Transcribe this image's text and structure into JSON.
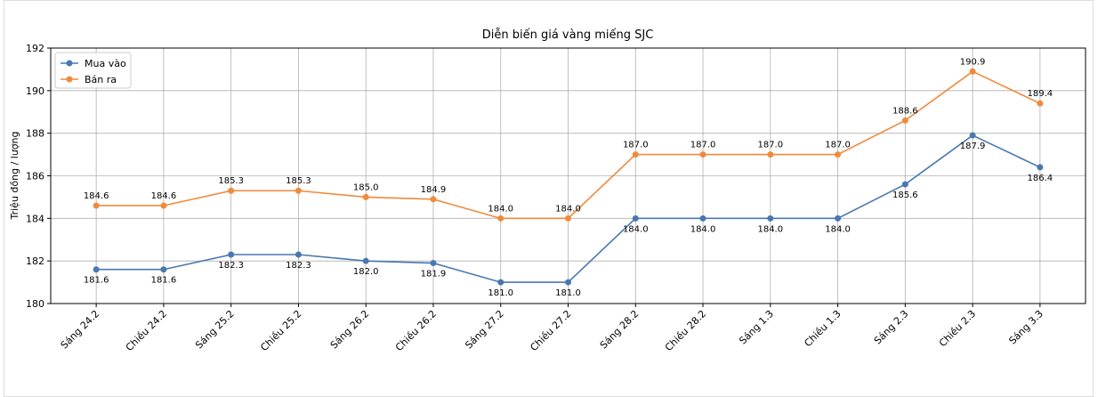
{
  "chart_data": {
    "type": "line",
    "title": "Diễn biến giá vàng miếng SJC",
    "y_label": "Triệu đồng / lượng",
    "categories": [
      "Sáng 24.2",
      "Chiều 24.2",
      "Sáng 25.2",
      "Chiều 25.2",
      "Sáng 26.2",
      "Chiều 26.2",
      "Sáng 27.2",
      "Chiều 27.2",
      "Sáng 28.2",
      "Chiều 28.2",
      "Sáng 1.3",
      "Chiều 1.3",
      "Sáng 2.3",
      "Chiều 2.3",
      "Sáng 3.3"
    ],
    "series": [
      {
        "name": "Mua vào",
        "color": "#4878b0",
        "values": [
          181.6,
          181.6,
          182.3,
          182.3,
          182.0,
          181.9,
          181.0,
          181.0,
          184.0,
          184.0,
          184.0,
          184.0,
          185.6,
          187.9,
          186.4
        ],
        "value_labels": [
          "181.6",
          "181.6",
          "182.3",
          "182.3",
          "182.0",
          "181.9",
          "181.0",
          "181.0",
          "184.0",
          "184.0",
          "184.0",
          "184.0",
          "185.6",
          "187.9",
          "186.4"
        ]
      },
      {
        "name": "Bán ra",
        "color": "#f08a3c",
        "values": [
          184.6,
          184.6,
          185.3,
          185.3,
          185.0,
          184.9,
          184.0,
          184.0,
          187.0,
          187.0,
          187.0,
          187.0,
          188.6,
          190.9,
          189.4
        ],
        "value_labels": [
          "184.6",
          "184.6",
          "185.3",
          "185.3",
          "185.0",
          "184.9",
          "184.0",
          "184.0",
          "187.0",
          "187.0",
          "187.0",
          "187.0",
          "188.6",
          "190.9",
          "189.4"
        ]
      }
    ],
    "ylim": [
      180,
      192
    ],
    "yticks": [
      180,
      182,
      184,
      186,
      188,
      190,
      192
    ],
    "grid": true,
    "legend": "upper left"
  }
}
